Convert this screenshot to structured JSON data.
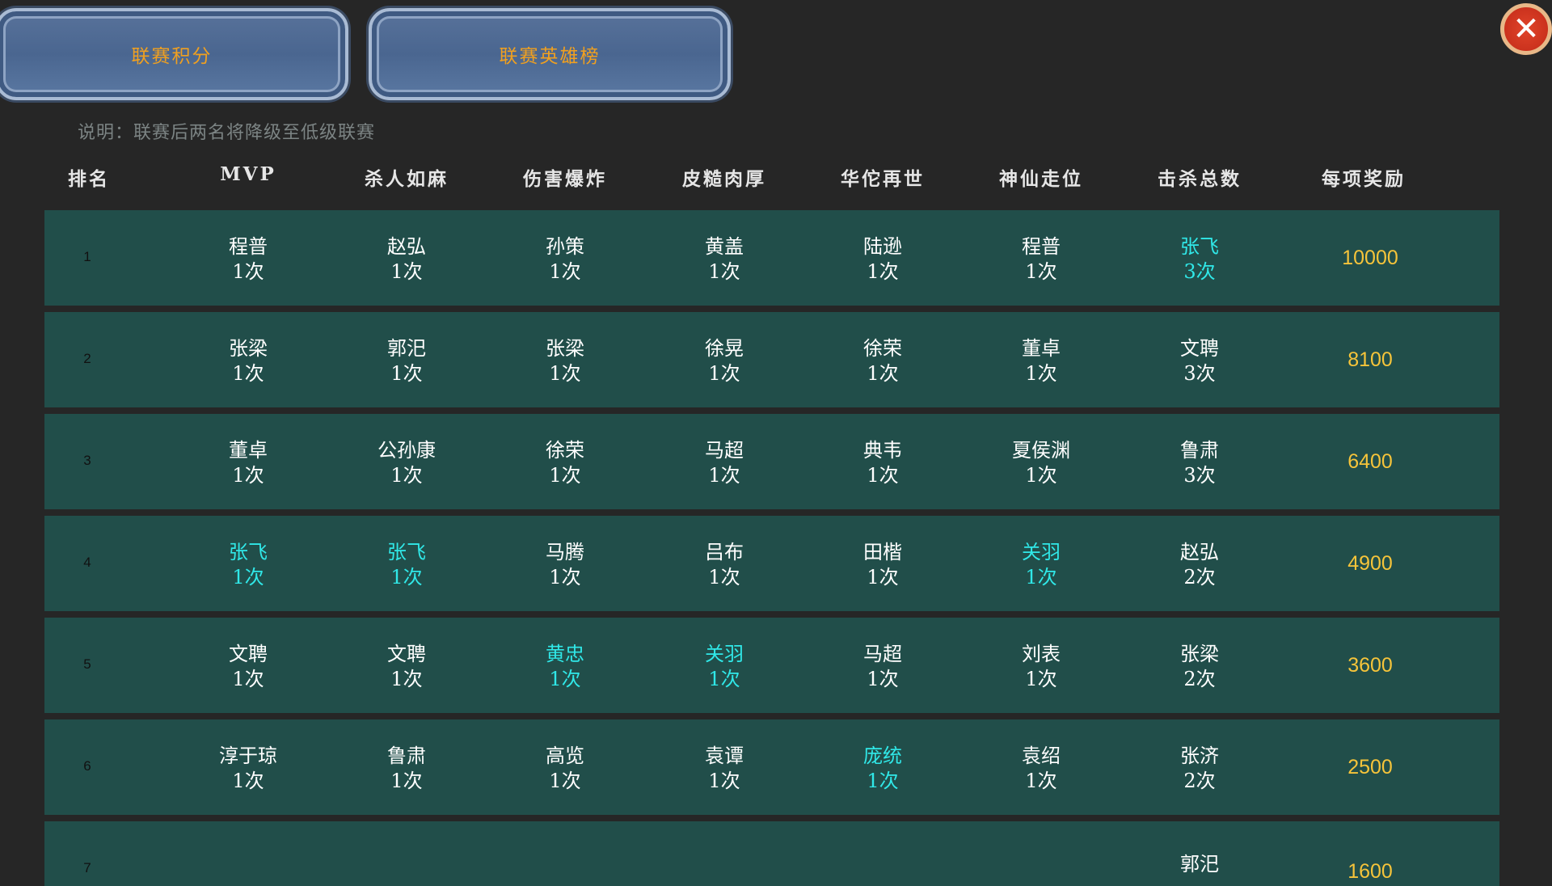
{
  "tabs": [
    "联赛积分",
    "联赛英雄榜"
  ],
  "close_icon": "close-x-icon",
  "note": "说明：联赛后两名将降级至低级联赛",
  "colors": {
    "background": "#262626",
    "row": "#214e4a",
    "highlight": "#30e8e8",
    "reward": "#f6c43a",
    "tab_text": "#f0a020"
  },
  "headers": [
    "排名",
    "MVP",
    "杀人如麻",
    "伤害爆炸",
    "皮糙肉厚",
    "华佗再世",
    "神仙走位",
    "击杀总数",
    "每项奖励"
  ],
  "rows": [
    {
      "rank": "1",
      "reward": "10000",
      "cells": [
        {
          "name": "程普",
          "count": "1次"
        },
        {
          "name": "赵弘",
          "count": "1次"
        },
        {
          "name": "孙策",
          "count": "1次"
        },
        {
          "name": "黄盖",
          "count": "1次"
        },
        {
          "name": "陆逊",
          "count": "1次"
        },
        {
          "name": "程普",
          "count": "1次"
        },
        {
          "name": "张飞",
          "count": "3次",
          "highlight": true
        }
      ]
    },
    {
      "rank": "2",
      "reward": "8100",
      "cells": [
        {
          "name": "张梁",
          "count": "1次"
        },
        {
          "name": "郭汜",
          "count": "1次"
        },
        {
          "name": "张梁",
          "count": "1次"
        },
        {
          "name": "徐晃",
          "count": "1次"
        },
        {
          "name": "徐荣",
          "count": "1次"
        },
        {
          "name": "董卓",
          "count": "1次"
        },
        {
          "name": "文聘",
          "count": "3次"
        }
      ]
    },
    {
      "rank": "3",
      "reward": "6400",
      "cells": [
        {
          "name": "董卓",
          "count": "1次"
        },
        {
          "name": "公孙康",
          "count": "1次"
        },
        {
          "name": "徐荣",
          "count": "1次"
        },
        {
          "name": "马超",
          "count": "1次"
        },
        {
          "name": "典韦",
          "count": "1次"
        },
        {
          "name": "夏侯渊",
          "count": "1次"
        },
        {
          "name": "鲁肃",
          "count": "3次"
        }
      ]
    },
    {
      "rank": "4",
      "reward": "4900",
      "cells": [
        {
          "name": "张飞",
          "count": "1次",
          "highlight": true
        },
        {
          "name": "张飞",
          "count": "1次",
          "highlight": true
        },
        {
          "name": "马腾",
          "count": "1次"
        },
        {
          "name": "吕布",
          "count": "1次"
        },
        {
          "name": "田楷",
          "count": "1次"
        },
        {
          "name": "关羽",
          "count": "1次",
          "highlight": true
        },
        {
          "name": "赵弘",
          "count": "2次"
        }
      ]
    },
    {
      "rank": "5",
      "reward": "3600",
      "cells": [
        {
          "name": "文聘",
          "count": "1次"
        },
        {
          "name": "文聘",
          "count": "1次"
        },
        {
          "name": "黄忠",
          "count": "1次",
          "highlight": true
        },
        {
          "name": "关羽",
          "count": "1次",
          "highlight": true
        },
        {
          "name": "马超",
          "count": "1次"
        },
        {
          "name": "刘表",
          "count": "1次"
        },
        {
          "name": "张梁",
          "count": "2次"
        }
      ]
    },
    {
      "rank": "6",
      "reward": "2500",
      "cells": [
        {
          "name": "淳于琼",
          "count": "1次"
        },
        {
          "name": "鲁肃",
          "count": "1次"
        },
        {
          "name": "高览",
          "count": "1次"
        },
        {
          "name": "袁谭",
          "count": "1次"
        },
        {
          "name": "庞统",
          "count": "1次",
          "highlight": true
        },
        {
          "name": "袁绍",
          "count": "1次"
        },
        {
          "name": "张济",
          "count": "2次"
        }
      ]
    },
    {
      "rank": "7",
      "reward": "1600",
      "cells": [
        {
          "name": "",
          "count": ""
        },
        {
          "name": "",
          "count": ""
        },
        {
          "name": "",
          "count": ""
        },
        {
          "name": "",
          "count": ""
        },
        {
          "name": "",
          "count": ""
        },
        {
          "name": "",
          "count": ""
        },
        {
          "name": "郭汜",
          "count": ""
        }
      ]
    }
  ]
}
